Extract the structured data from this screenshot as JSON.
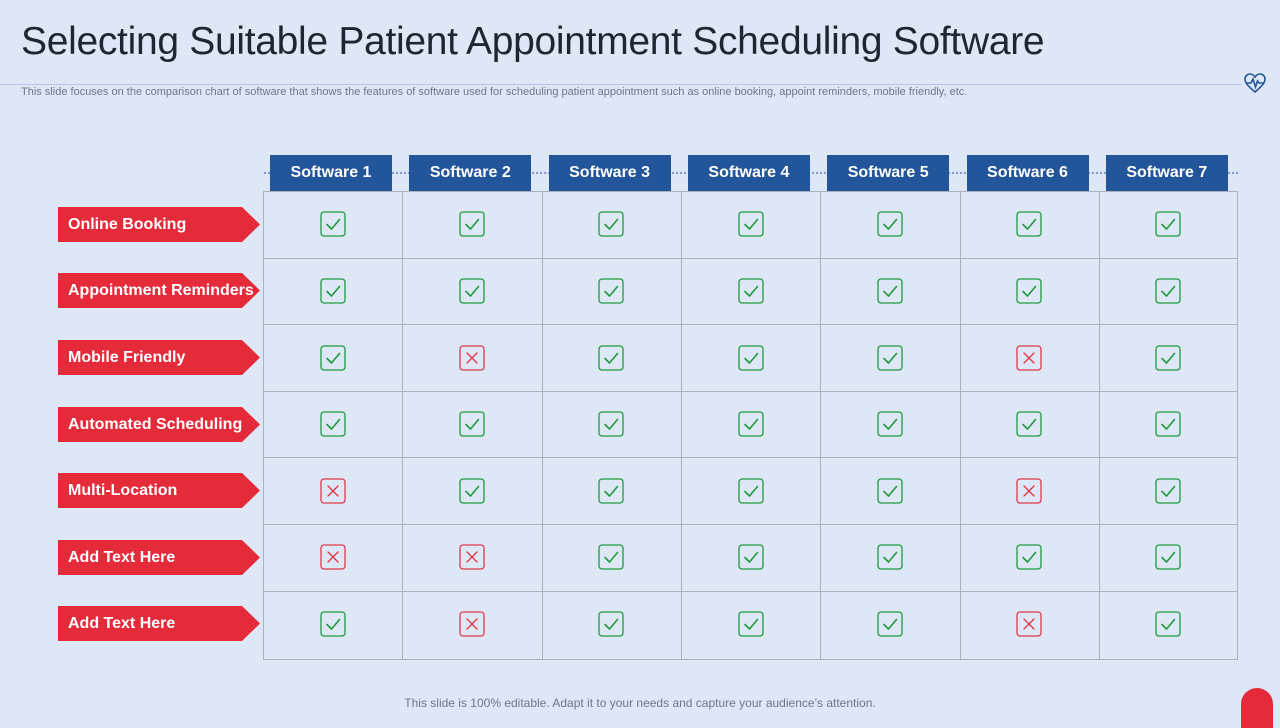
{
  "title": "Selecting Suitable Patient Appointment Scheduling Software",
  "subtitle": "This slide focuses on the comparison chart of software that shows the features of software used for scheduling patient appointment such as online booking, appoint reminders, mobile friendly, etc.",
  "columns": [
    "Software 1",
    "Software 2",
    "Software 3",
    "Software 4",
    "Software 5",
    "Software 6",
    "Software 7"
  ],
  "rows": [
    {
      "label": "Online Booking",
      "values": [
        true,
        true,
        true,
        true,
        true,
        true,
        true
      ]
    },
    {
      "label": "Appointment Reminders",
      "values": [
        true,
        true,
        true,
        true,
        true,
        true,
        true
      ]
    },
    {
      "label": "Mobile Friendly",
      "values": [
        true,
        false,
        true,
        true,
        true,
        false,
        true
      ]
    },
    {
      "label": "Automated Scheduling",
      "values": [
        true,
        true,
        true,
        true,
        true,
        true,
        true
      ]
    },
    {
      "label": "Multi-Location",
      "values": [
        false,
        true,
        true,
        true,
        true,
        false,
        true
      ]
    },
    {
      "label": "Add Text Here",
      "values": [
        false,
        false,
        true,
        true,
        true,
        true,
        true
      ]
    },
    {
      "label": "Add Text Here",
      "values": [
        true,
        false,
        true,
        true,
        true,
        false,
        true
      ]
    }
  ],
  "icons": {
    "yes": "check-icon",
    "no": "cross-icon",
    "header": "heartbeat-icon"
  },
  "colors": {
    "header": "#23559b",
    "label": "#e52a3a",
    "check": "#1f9a3c",
    "cross": "#e0394a"
  },
  "footer": "This slide is 100% editable. Adapt it to your needs and capture your audience’s attention."
}
